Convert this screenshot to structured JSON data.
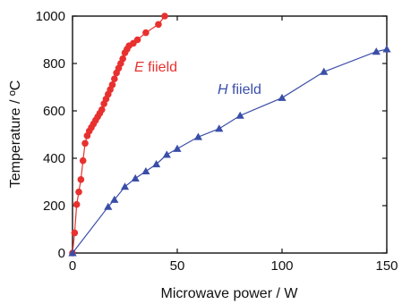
{
  "chart_data": {
    "type": "line",
    "title": "",
    "xlabel": "Microwave power / W",
    "ylabel": "Temperature / ºC",
    "xlim": [
      0,
      150
    ],
    "ylim": [
      0,
      1000
    ],
    "x_ticks": [
      0,
      50,
      100,
      150
    ],
    "y_ticks": [
      0,
      200,
      400,
      600,
      800,
      1000
    ],
    "grid": false,
    "series": [
      {
        "name": "E fiield",
        "label_italic": "E",
        "label_rest": " fiield",
        "color": "#e8312f",
        "marker": "circle",
        "x": [
          0,
          1,
          2,
          3,
          4,
          5,
          6,
          7,
          8,
          9,
          10,
          11,
          12,
          13,
          14,
          15,
          16,
          17,
          18,
          19,
          20,
          21,
          22,
          23,
          24,
          25,
          26,
          27,
          29,
          31,
          35,
          41,
          44
        ],
        "y": [
          0,
          85,
          205,
          258,
          310,
          390,
          463,
          495,
          515,
          530,
          545,
          560,
          575,
          590,
          605,
          630,
          650,
          670,
          690,
          710,
          735,
          760,
          780,
          800,
          820,
          845,
          860,
          875,
          885,
          900,
          930,
          965,
          1000
        ]
      },
      {
        "name": "H fiield",
        "label_italic": "H",
        "label_rest": " fiield",
        "color": "#3a4ea8",
        "marker": "triangle",
        "x": [
          0,
          17,
          20,
          25,
          30,
          35,
          40,
          45,
          50,
          60,
          70,
          80,
          100,
          120,
          145,
          150
        ],
        "y": [
          0,
          195,
          225,
          280,
          315,
          345,
          375,
          415,
          440,
          490,
          525,
          580,
          655,
          765,
          850,
          860
        ]
      }
    ]
  }
}
